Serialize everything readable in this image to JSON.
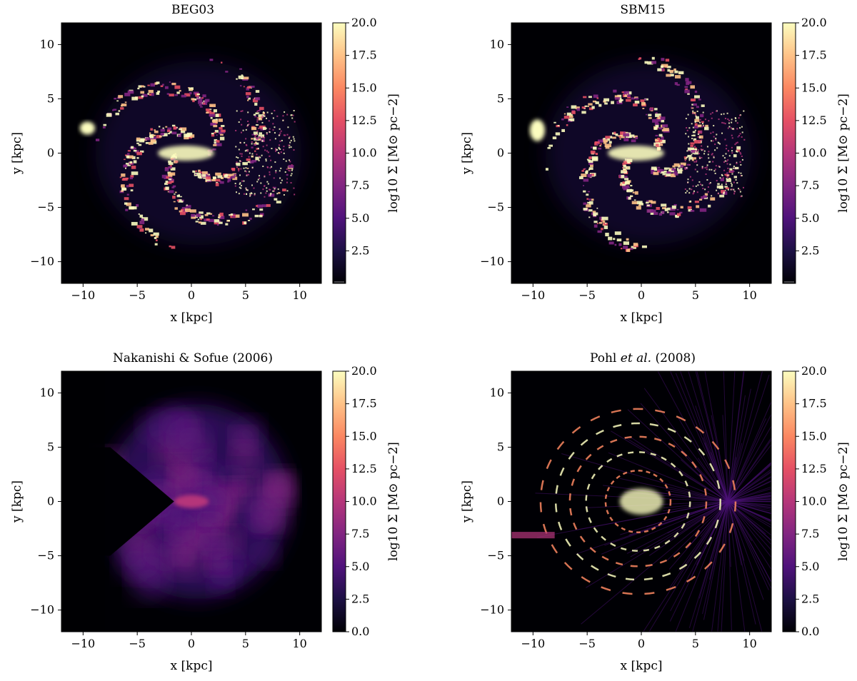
{
  "colors": {
    "colormap": "magma",
    "stops": [
      "#000004",
      "#1c1044",
      "#4f127b",
      "#812581",
      "#b5367a",
      "#e55064",
      "#fb8761",
      "#fec287",
      "#fcfdbf"
    ],
    "background": "#000004"
  },
  "chart_data": [
    {
      "type": "heatmap",
      "title": "BEG03",
      "xlabel": "x [kpc]",
      "ylabel": "y [kpc]",
      "xlim": [
        -12,
        12
      ],
      "ylim": [
        -12,
        12
      ],
      "xticks": [
        "−10",
        "−5",
        "0",
        "5",
        "10"
      ],
      "yticks": [
        "10",
        "5",
        "0",
        "−5",
        "−10"
      ],
      "colorbar": {
        "label": "log10 Σ [M⊙ pc−2]",
        "range": [
          0,
          20
        ],
        "ticks": [
          "20.0",
          "17.5",
          "15.0",
          "12.5",
          "10.0",
          "7.5",
          "5.0",
          "2.5"
        ],
        "extend": "min"
      },
      "morphology": "clumpy spiral arms, left edge of gas disc near x = -10 kpc"
    },
    {
      "type": "heatmap",
      "title": "SBM15",
      "xlabel": "x [kpc]",
      "ylabel": "y [kpc]",
      "xlim": [
        -12,
        12
      ],
      "ylim": [
        -12,
        12
      ],
      "xticks": [
        "−10",
        "−5",
        "0",
        "5",
        "10"
      ],
      "yticks": [
        "10",
        "5",
        "0",
        "−5",
        "−10"
      ],
      "colorbar": {
        "label": "log10 Σ [M⊙ pc−2]",
        "range": [
          0,
          20
        ],
        "ticks": [
          "20.0",
          "17.5",
          "15.0",
          "12.5",
          "10.0",
          "7.5",
          "5.0",
          "2.5"
        ],
        "extend": "min"
      },
      "morphology": "clumpy spiral arms with bright central bar"
    },
    {
      "type": "heatmap",
      "title": "Nakanishi & Sofue (2006)",
      "xlabel": "x [kpc]",
      "ylabel": "y [kpc]",
      "xlim": [
        -12,
        12
      ],
      "ylim": [
        -12,
        12
      ],
      "xticks": [
        "−10",
        "−5",
        "0",
        "5",
        "10"
      ],
      "yticks": [
        "10",
        "5",
        "0",
        "−5",
        "−10"
      ],
      "colorbar": {
        "label": "log10 Σ [M⊙ pc−2]",
        "range": [
          0,
          20
        ],
        "ticks": [
          "20.0",
          "17.5",
          "15.0",
          "12.5",
          "10.0",
          "7.5",
          "5.0",
          "2.5",
          "0.0"
        ],
        "extend": "none"
      },
      "morphology": "smooth diffuse distribution with a wedge-shaped blanked region pointing left from the centre"
    },
    {
      "type": "heatmap",
      "title": "Pohl et al. (2008)",
      "title_parts": [
        "Pohl ",
        "et al.",
        " (2008)"
      ],
      "xlabel": "x [kpc]",
      "ylabel": "y [kpc]",
      "xlim": [
        -12,
        12
      ],
      "ylim": [
        -12,
        12
      ],
      "xticks": [
        "−10",
        "−5",
        "0",
        "5",
        "10"
      ],
      "yticks": [
        "10",
        "5",
        "0",
        "−5",
        "−10"
      ],
      "colorbar": {
        "label": "log10 Σ [M⊙ pc−2]",
        "range": [
          0,
          20
        ],
        "ticks": [
          "20.0",
          "17.5",
          "15.0",
          "12.5",
          "10.0",
          "7.5",
          "5.0",
          "2.5",
          "0.0"
        ],
        "extend": "none"
      },
      "morphology": "ring-like arcs with radial streaks emanating from x = 8 kpc"
    }
  ]
}
